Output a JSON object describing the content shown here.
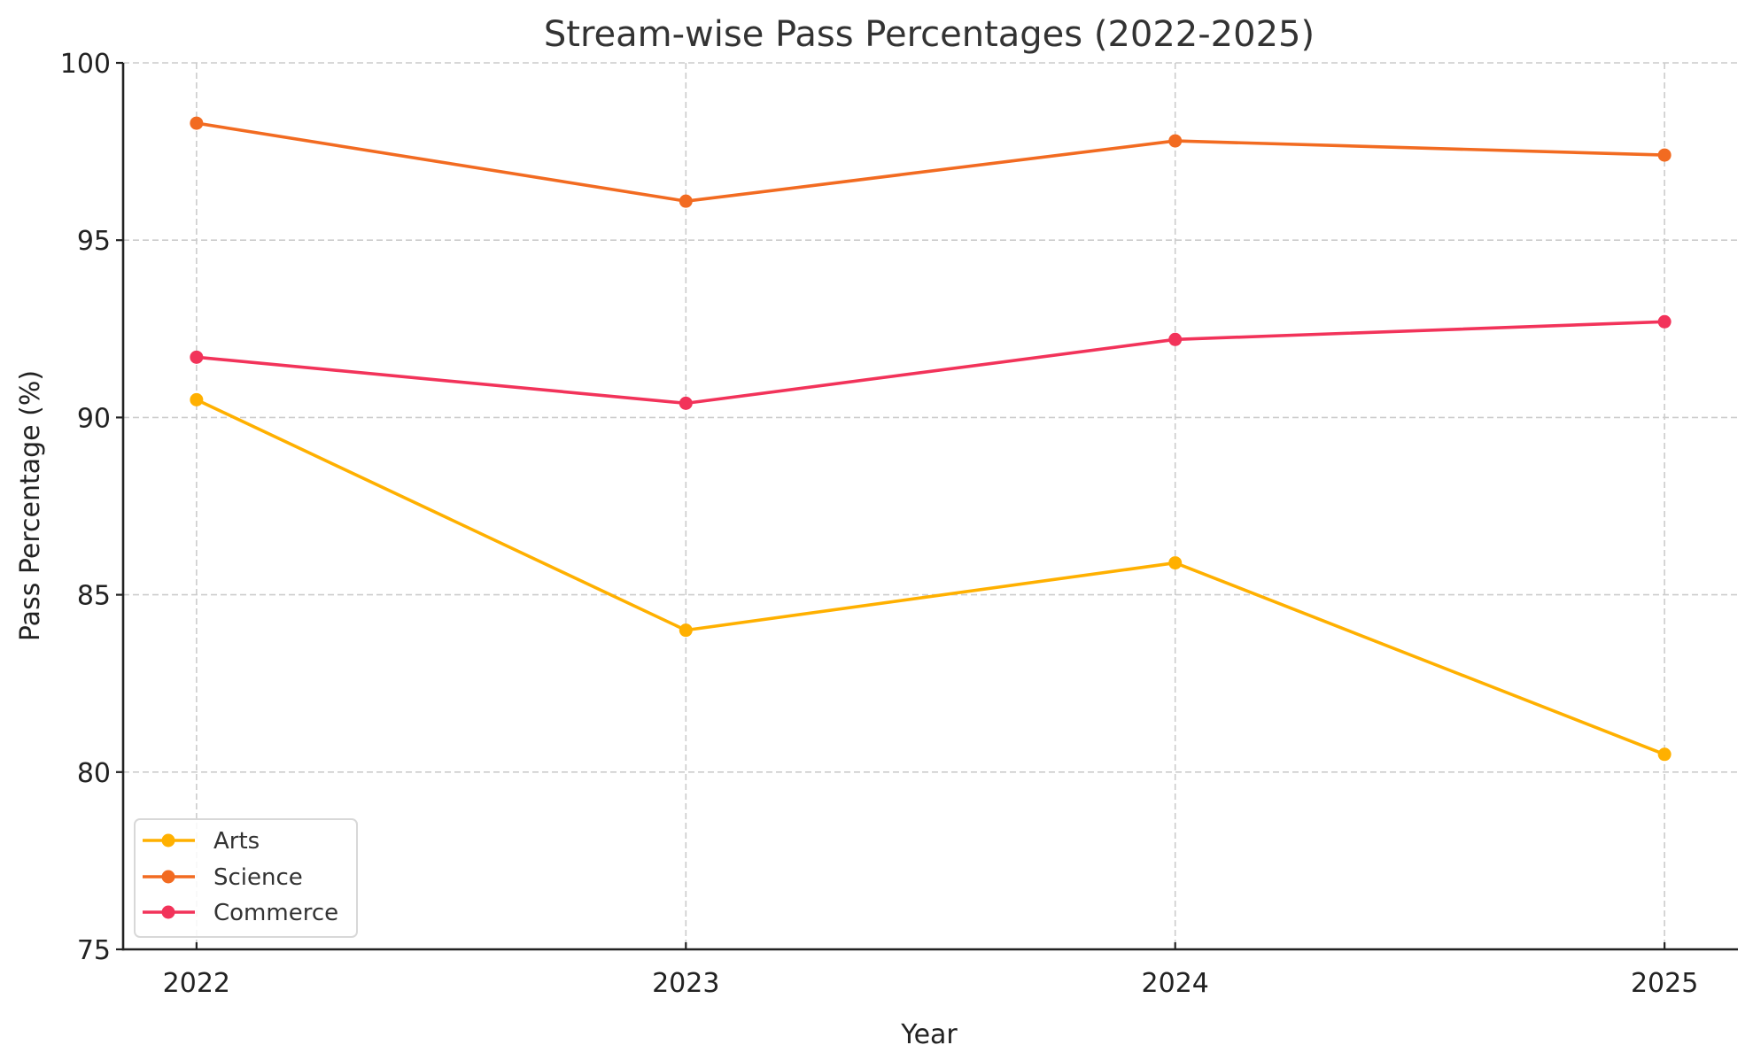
{
  "chart_data": {
    "type": "line",
    "title": "Stream-wise Pass Percentages (2022-2025)",
    "xlabel": "Year",
    "ylabel": "Pass Percentage (%)",
    "x": [
      2022,
      2023,
      2024,
      2025
    ],
    "x_tick_labels": [
      "2022",
      "2023",
      "2024",
      "2025"
    ],
    "xlim": [
      2021.85,
      2025.15
    ],
    "ylim": [
      75,
      100
    ],
    "y_ticks": [
      75,
      80,
      85,
      90,
      95,
      100
    ],
    "y_tick_labels": [
      "75",
      "80",
      "85",
      "90",
      "95",
      "100"
    ],
    "grid": true,
    "grid_style": "dashed",
    "legend_position": "lower-left",
    "series": [
      {
        "name": "Arts",
        "color": "#FFB000",
        "marker": "circle",
        "values": [
          90.5,
          84.0,
          85.9,
          80.5
        ]
      },
      {
        "name": "Science",
        "color": "#F26B21",
        "marker": "circle",
        "values": [
          98.3,
          96.1,
          97.8,
          97.4
        ]
      },
      {
        "name": "Commerce",
        "color": "#F2335A",
        "marker": "circle",
        "values": [
          91.7,
          90.4,
          92.2,
          92.7
        ]
      }
    ]
  }
}
